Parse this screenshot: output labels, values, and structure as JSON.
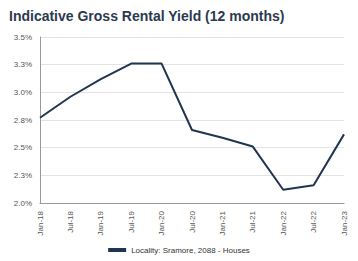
{
  "chart_data": {
    "type": "line",
    "title": "Indicative Gross Rental Yield (12 months)",
    "categories": [
      "Jan-18",
      "Jul-18",
      "Jan-19",
      "Jul-19",
      "Jan-20",
      "Jul-20",
      "Jan-21",
      "Jul-21",
      "Jan-22",
      "Jul-22",
      "Jan-23"
    ],
    "series": [
      {
        "name": "Locality: Sramore, 2088 - Houses",
        "color": "#1f3550",
        "values": [
          2.77,
          2.96,
          3.12,
          3.26,
          3.26,
          2.66,
          2.59,
          2.51,
          2.12,
          2.16,
          2.62
        ]
      }
    ],
    "ylim": [
      2.0,
      3.5
    ],
    "yticks": [
      {
        "value": 2.0,
        "label": "2.0%"
      },
      {
        "value": 2.25,
        "label": "2.3%"
      },
      {
        "value": 2.5,
        "label": "2.5%"
      },
      {
        "value": 2.75,
        "label": "2.8%"
      },
      {
        "value": 3.0,
        "label": "3.0%"
      },
      {
        "value": 3.25,
        "label": "3.3%"
      },
      {
        "value": 3.5,
        "label": "3.5%"
      }
    ],
    "grid": true,
    "legend": "bottom"
  }
}
